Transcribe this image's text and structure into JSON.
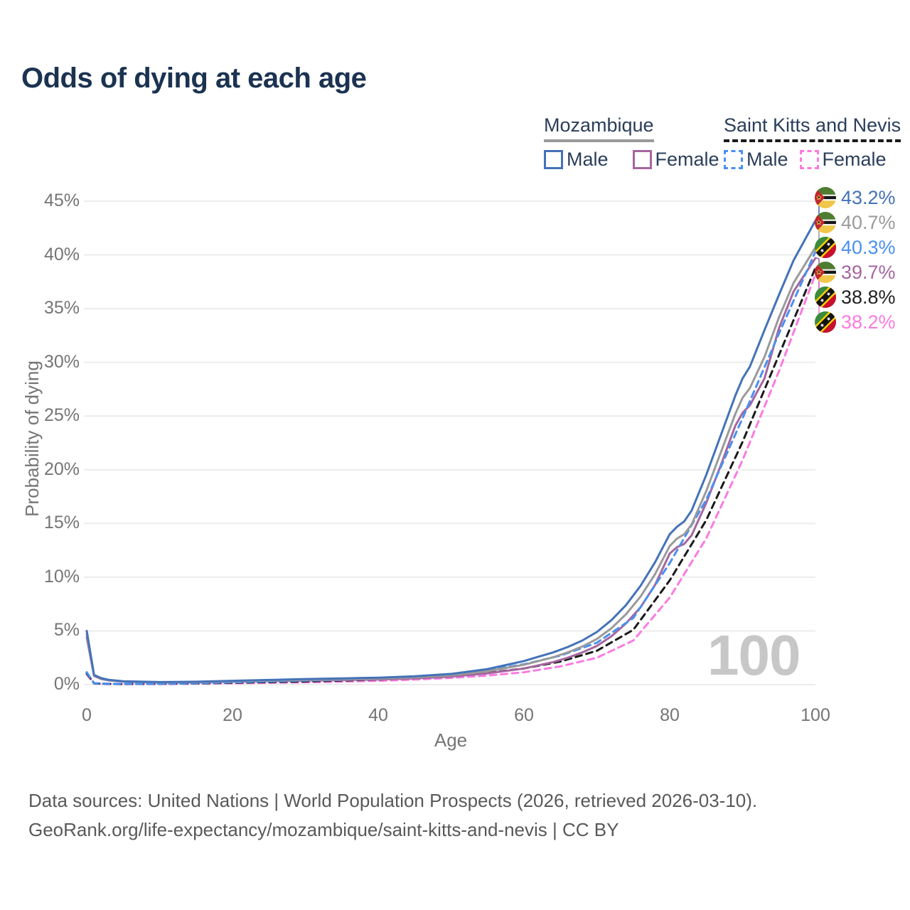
{
  "title": "Odds of dying at each age",
  "watermark": "100",
  "legend": {
    "groups": [
      {
        "country": "Mozambique",
        "underline_color": "#9a9a9a",
        "underline_style": "solid",
        "items": [
          {
            "label": "Male",
            "color": "#4472b8",
            "style": "solid"
          },
          {
            "label": "Female",
            "color": "#a5669f",
            "style": "solid"
          }
        ]
      },
      {
        "country": "Saint Kitts and Nevis",
        "underline_color": "#1a1a1a",
        "underline_style": "dashed",
        "items": [
          {
            "label": "Male",
            "color": "#4a90f0",
            "style": "dashed"
          },
          {
            "label": "Female",
            "color": "#fb7ae1",
            "style": "dashed"
          }
        ]
      }
    ]
  },
  "chart_data": {
    "type": "line",
    "title": "Odds of dying at each age",
    "xlabel": "Age",
    "ylabel": "Probability of dying",
    "xlim": [
      0,
      100
    ],
    "ylim": [
      0,
      45
    ],
    "x_ticks": [
      0,
      20,
      40,
      60,
      80,
      100
    ],
    "y_ticks": [
      0,
      5,
      10,
      15,
      20,
      25,
      30,
      35,
      40,
      45
    ],
    "y_tick_suffix": "%",
    "grid": "horizontal",
    "series": [
      {
        "name": "Mozambique Male",
        "country": "mozambique",
        "sex": "male",
        "color": "#4472b8",
        "dash": "solid",
        "x": [
          0,
          1,
          2,
          3,
          5,
          10,
          15,
          20,
          25,
          30,
          35,
          40,
          45,
          50,
          55,
          60,
          62,
          64,
          66,
          68,
          70,
          72,
          74,
          76,
          78,
          80,
          81,
          82,
          83,
          85,
          87,
          89,
          90,
          91,
          93,
          95,
          97,
          100
        ],
        "y": [
          5.0,
          0.9,
          0.6,
          0.45,
          0.32,
          0.24,
          0.27,
          0.36,
          0.44,
          0.52,
          0.58,
          0.65,
          0.78,
          1.0,
          1.45,
          2.2,
          2.6,
          3.0,
          3.5,
          4.1,
          4.9,
          6.0,
          7.4,
          9.2,
          11.4,
          14.0,
          14.7,
          15.2,
          16.2,
          19.5,
          23.2,
          26.9,
          28.5,
          29.6,
          33.0,
          36.3,
          39.5,
          43.2
        ]
      },
      {
        "name": "Mozambique Both sexes",
        "country": "mozambique",
        "sex": "both",
        "color": "#9a9a9a",
        "dash": "solid",
        "x": [
          0,
          1,
          2,
          3,
          5,
          10,
          15,
          20,
          25,
          30,
          35,
          40,
          45,
          50,
          55,
          60,
          62,
          64,
          66,
          68,
          70,
          72,
          74,
          76,
          78,
          80,
          81,
          82,
          83,
          85,
          87,
          89,
          90,
          91,
          93,
          95,
          97,
          100
        ],
        "y": [
          4.7,
          0.85,
          0.56,
          0.42,
          0.3,
          0.22,
          0.24,
          0.32,
          0.38,
          0.45,
          0.5,
          0.56,
          0.68,
          0.87,
          1.25,
          1.85,
          2.2,
          2.55,
          3.0,
          3.55,
          4.25,
          5.25,
          6.55,
          8.2,
          10.3,
          12.9,
          13.6,
          14.0,
          14.9,
          18.0,
          21.6,
          25.2,
          26.7,
          27.6,
          30.5,
          34.2,
          37.4,
          40.7
        ]
      },
      {
        "name": "Saint Kitts and Nevis Male",
        "country": "saint-kitts-and-nevis",
        "sex": "male",
        "color": "#4a90f0",
        "dash": "dashed",
        "x": [
          0,
          1,
          2,
          3,
          5,
          10,
          15,
          20,
          25,
          30,
          35,
          40,
          45,
          50,
          55,
          60,
          65,
          70,
          75,
          80,
          85,
          90,
          95,
          100
        ],
        "y": [
          1.15,
          0.13,
          0.1,
          0.08,
          0.07,
          0.08,
          0.13,
          0.22,
          0.3,
          0.38,
          0.47,
          0.57,
          0.72,
          0.95,
          1.35,
          1.9,
          2.7,
          3.9,
          6.2,
          11.3,
          17.2,
          24.8,
          32.7,
          40.3
        ]
      },
      {
        "name": "Mozambique Female",
        "country": "mozambique",
        "sex": "female",
        "color": "#a5669f",
        "dash": "solid",
        "x": [
          0,
          1,
          2,
          3,
          5,
          10,
          15,
          20,
          25,
          30,
          35,
          40,
          45,
          50,
          55,
          60,
          62,
          64,
          66,
          68,
          70,
          72,
          74,
          76,
          78,
          80,
          81,
          82,
          83,
          85,
          87,
          89,
          90,
          91,
          93,
          95,
          97,
          100
        ],
        "y": [
          4.4,
          0.8,
          0.52,
          0.4,
          0.28,
          0.2,
          0.22,
          0.28,
          0.33,
          0.38,
          0.43,
          0.48,
          0.58,
          0.75,
          1.05,
          1.5,
          1.8,
          2.1,
          2.5,
          3.0,
          3.6,
          4.5,
          5.7,
          7.2,
          9.3,
          12.2,
          12.8,
          13.1,
          13.9,
          16.9,
          20.4,
          24.1,
          25.3,
          26.0,
          28.5,
          33.2,
          36.6,
          39.7
        ]
      },
      {
        "name": "Saint Kitts and Nevis Both sexes",
        "country": "saint-kitts-and-nevis",
        "sex": "both",
        "color": "#1a1a1a",
        "dash": "dashed",
        "x": [
          0,
          1,
          2,
          3,
          5,
          10,
          15,
          20,
          25,
          30,
          35,
          40,
          45,
          50,
          55,
          60,
          65,
          70,
          75,
          80,
          85,
          90,
          95,
          100
        ],
        "y": [
          1.05,
          0.12,
          0.09,
          0.07,
          0.06,
          0.07,
          0.11,
          0.18,
          0.24,
          0.3,
          0.38,
          0.47,
          0.6,
          0.8,
          1.1,
          1.5,
          2.15,
          3.15,
          5.1,
          9.7,
          15.3,
          22.6,
          30.7,
          38.8
        ]
      },
      {
        "name": "Saint Kitts and Nevis Female",
        "country": "saint-kitts-and-nevis",
        "sex": "female",
        "color": "#fb7ae1",
        "dash": "dashed",
        "x": [
          0,
          1,
          2,
          3,
          5,
          10,
          15,
          20,
          25,
          30,
          35,
          40,
          45,
          50,
          55,
          60,
          65,
          70,
          75,
          80,
          85,
          90,
          95,
          100
        ],
        "y": [
          0.95,
          0.11,
          0.08,
          0.06,
          0.05,
          0.06,
          0.09,
          0.13,
          0.17,
          0.22,
          0.28,
          0.36,
          0.47,
          0.63,
          0.85,
          1.15,
          1.7,
          2.5,
          4.1,
          8.1,
          13.6,
          20.9,
          29.2,
          38.2
        ]
      }
    ],
    "end_labels": [
      {
        "value": "43.2%",
        "flag": "mozambique",
        "color": "#4472b8"
      },
      {
        "value": "40.7%",
        "flag": "mozambique",
        "color": "#9a9a9a"
      },
      {
        "value": "40.3%",
        "flag": "saint-kitts-and-nevis",
        "color": "#4a90f0"
      },
      {
        "value": "39.7%",
        "flag": "mozambique",
        "color": "#a5669f"
      },
      {
        "value": "38.8%",
        "flag": "saint-kitts-and-nevis",
        "color": "#222222"
      },
      {
        "value": "38.2%",
        "flag": "saint-kitts-and-nevis",
        "color": "#fb7ae1"
      }
    ],
    "legend_position": "top-right"
  },
  "footer": {
    "line1": "Data sources: United Nations | World Population Prospects (2026, retrieved 2026-03-10).",
    "line2": "GeoRank.org/life-expectancy/mozambique/saint-kitts-and-nevis | CC BY"
  }
}
